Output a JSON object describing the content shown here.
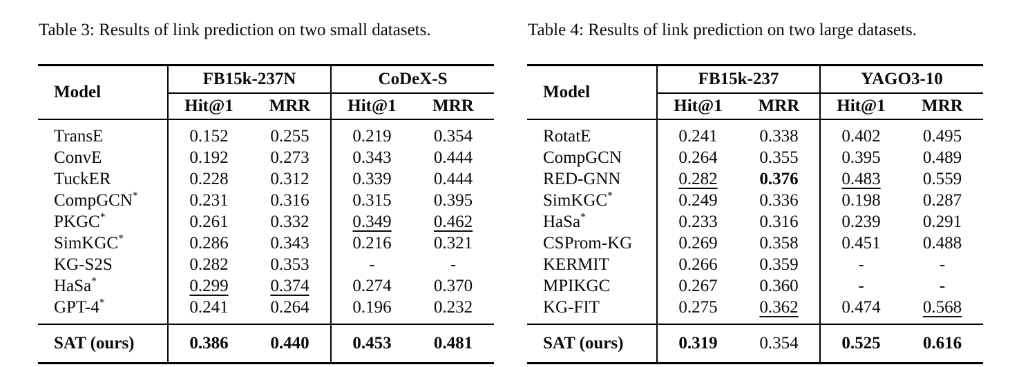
{
  "tables": [
    {
      "caption": "Table 3: Results of link prediction on two small datasets.",
      "header": {
        "model": "Model",
        "groups": [
          {
            "name": "FB15k-237N",
            "cols": [
              "Hit@1",
              "MRR"
            ]
          },
          {
            "name": "CoDeX-S",
            "cols": [
              "Hit@1",
              "MRR"
            ]
          }
        ]
      },
      "rows": [
        {
          "model": "TransE",
          "sup": "",
          "cells": [
            {
              "text": "0.152",
              "style": "normal"
            },
            {
              "text": "0.255",
              "style": "normal"
            },
            {
              "text": "0.219",
              "style": "normal"
            },
            {
              "text": "0.354",
              "style": "normal"
            }
          ]
        },
        {
          "model": "ConvE",
          "sup": "",
          "cells": [
            {
              "text": "0.192",
              "style": "normal"
            },
            {
              "text": "0.273",
              "style": "normal"
            },
            {
              "text": "0.343",
              "style": "normal"
            },
            {
              "text": "0.444",
              "style": "normal"
            }
          ]
        },
        {
          "model": "TuckER",
          "sup": "",
          "cells": [
            {
              "text": "0.228",
              "style": "normal"
            },
            {
              "text": "0.312",
              "style": "normal"
            },
            {
              "text": "0.339",
              "style": "normal"
            },
            {
              "text": "0.444",
              "style": "normal"
            }
          ]
        },
        {
          "model": "CompGCN",
          "sup": "*",
          "cells": [
            {
              "text": "0.231",
              "style": "normal"
            },
            {
              "text": "0.316",
              "style": "normal"
            },
            {
              "text": "0.315",
              "style": "normal"
            },
            {
              "text": "0.395",
              "style": "normal"
            }
          ]
        },
        {
          "model": "PKGC",
          "sup": "*",
          "cells": [
            {
              "text": "0.261",
              "style": "normal"
            },
            {
              "text": "0.332",
              "style": "normal"
            },
            {
              "text": "0.349",
              "style": "underline"
            },
            {
              "text": "0.462",
              "style": "underline"
            }
          ]
        },
        {
          "model": "SimKGC",
          "sup": "*",
          "cells": [
            {
              "text": "0.286",
              "style": "normal"
            },
            {
              "text": "0.343",
              "style": "normal"
            },
            {
              "text": "0.216",
              "style": "normal"
            },
            {
              "text": "0.321",
              "style": "normal"
            }
          ]
        },
        {
          "model": "KG-S2S",
          "sup": "",
          "cells": [
            {
              "text": "0.282",
              "style": "normal"
            },
            {
              "text": "0.353",
              "style": "normal"
            },
            {
              "text": "-",
              "style": "normal"
            },
            {
              "text": "-",
              "style": "normal"
            }
          ]
        },
        {
          "model": "HaSa",
          "sup": "*",
          "cells": [
            {
              "text": "0.299",
              "style": "underline"
            },
            {
              "text": "0.374",
              "style": "underline"
            },
            {
              "text": "0.274",
              "style": "normal"
            },
            {
              "text": "0.370",
              "style": "normal"
            }
          ]
        },
        {
          "model": "GPT-4",
          "sup": "*",
          "cells": [
            {
              "text": "0.241",
              "style": "normal"
            },
            {
              "text": "0.264",
              "style": "normal"
            },
            {
              "text": "0.196",
              "style": "normal"
            },
            {
              "text": "0.232",
              "style": "normal"
            }
          ]
        }
      ],
      "summary": [
        {
          "model": "SAT (ours)",
          "sup": "",
          "model_bold": true,
          "cells": [
            {
              "text": "0.386",
              "style": "bold"
            },
            {
              "text": "0.440",
              "style": "bold"
            },
            {
              "text": "0.453",
              "style": "bold"
            },
            {
              "text": "0.481",
              "style": "bold"
            }
          ]
        }
      ]
    },
    {
      "caption": "Table 4: Results of link prediction on two large datasets.",
      "header": {
        "model": "Model",
        "groups": [
          {
            "name": "FB15k-237",
            "cols": [
              "Hit@1",
              "MRR"
            ]
          },
          {
            "name": "YAGO3-10",
            "cols": [
              "Hit@1",
              "MRR"
            ]
          }
        ]
      },
      "rows": [
        {
          "model": "RotatE",
          "sup": "",
          "cells": [
            {
              "text": "0.241",
              "style": "normal"
            },
            {
              "text": "0.338",
              "style": "normal"
            },
            {
              "text": "0.402",
              "style": "normal"
            },
            {
              "text": "0.495",
              "style": "normal"
            }
          ]
        },
        {
          "model": "CompGCN",
          "sup": "",
          "cells": [
            {
              "text": "0.264",
              "style": "normal"
            },
            {
              "text": "0.355",
              "style": "normal"
            },
            {
              "text": "0.395",
              "style": "normal"
            },
            {
              "text": "0.489",
              "style": "normal"
            }
          ]
        },
        {
          "model": "RED-GNN",
          "sup": "",
          "cells": [
            {
              "text": "0.282",
              "style": "underline"
            },
            {
              "text": "0.376",
              "style": "bold"
            },
            {
              "text": "0.483",
              "style": "underline"
            },
            {
              "text": "0.559",
              "style": "normal"
            }
          ]
        },
        {
          "model": "SimKGC",
          "sup": "*",
          "cells": [
            {
              "text": "0.249",
              "style": "normal"
            },
            {
              "text": "0.336",
              "style": "normal"
            },
            {
              "text": "0.198",
              "style": "normal"
            },
            {
              "text": "0.287",
              "style": "normal"
            }
          ]
        },
        {
          "model": "HaSa",
          "sup": "*",
          "cells": [
            {
              "text": "0.233",
              "style": "normal"
            },
            {
              "text": "0.316",
              "style": "normal"
            },
            {
              "text": "0.239",
              "style": "normal"
            },
            {
              "text": "0.291",
              "style": "normal"
            }
          ]
        },
        {
          "model": "CSProm-KG",
          "sup": "",
          "cells": [
            {
              "text": "0.269",
              "style": "normal"
            },
            {
              "text": "0.358",
              "style": "normal"
            },
            {
              "text": "0.451",
              "style": "normal"
            },
            {
              "text": "0.488",
              "style": "normal"
            }
          ]
        },
        {
          "model": "KERMIT",
          "sup": "",
          "cells": [
            {
              "text": "0.266",
              "style": "normal"
            },
            {
              "text": "0.359",
              "style": "normal"
            },
            {
              "text": "-",
              "style": "normal"
            },
            {
              "text": "-",
              "style": "normal"
            }
          ]
        },
        {
          "model": "MPIKGC",
          "sup": "",
          "cells": [
            {
              "text": "0.267",
              "style": "normal"
            },
            {
              "text": "0.360",
              "style": "normal"
            },
            {
              "text": "-",
              "style": "normal"
            },
            {
              "text": "-",
              "style": "normal"
            }
          ]
        },
        {
          "model": "KG-FIT",
          "sup": "",
          "cells": [
            {
              "text": "0.275",
              "style": "normal"
            },
            {
              "text": "0.362",
              "style": "underline"
            },
            {
              "text": "0.474",
              "style": "normal"
            },
            {
              "text": "0.568",
              "style": "underline"
            }
          ]
        }
      ],
      "summary": [
        {
          "model": "SAT (ours)",
          "sup": "",
          "model_bold": true,
          "cells": [
            {
              "text": "0.319",
              "style": "bold"
            },
            {
              "text": "0.354",
              "style": "normal"
            },
            {
              "text": "0.525",
              "style": "bold"
            },
            {
              "text": "0.616",
              "style": "bold"
            }
          ]
        }
      ]
    }
  ]
}
